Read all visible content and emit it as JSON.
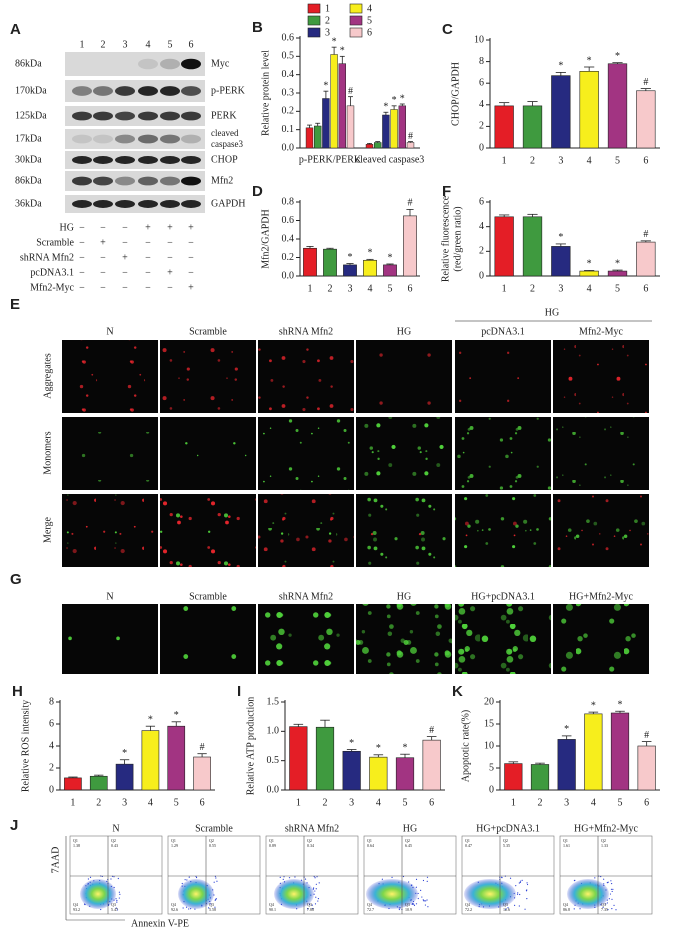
{
  "chart_data": [
    {
      "type": "grouped_bar",
      "label": "B",
      "ylabel": "Relative protein level",
      "categories": [
        "p-PERK/PERK",
        "cleaved caspase3"
      ],
      "series": [
        {
          "name": "1",
          "color": "#e41e26",
          "values": [
            0.11,
            0.02
          ],
          "errors": [
            0.015,
            0.005
          ],
          "significance": [
            null,
            null
          ]
        },
        {
          "name": "2",
          "color": "#3f9a3f",
          "values": [
            0.12,
            0.03
          ],
          "errors": [
            0.015,
            0.005
          ],
          "significance": [
            null,
            null
          ]
        },
        {
          "name": "3",
          "color": "#262a80",
          "values": [
            0.27,
            0.18
          ],
          "errors": [
            0.04,
            0.015
          ],
          "significance": [
            "*",
            "*"
          ]
        },
        {
          "name": "4",
          "color": "#f7ee1c",
          "values": [
            0.51,
            0.21
          ],
          "errors": [
            0.04,
            0.02
          ],
          "significance": [
            "*",
            "*"
          ]
        },
        {
          "name": "5",
          "color": "#a23482",
          "values": [
            0.46,
            0.23
          ],
          "errors": [
            0.04,
            0.01
          ],
          "significance": [
            "*",
            "*"
          ]
        },
        {
          "name": "6",
          "color": "#f7c9cb",
          "values": [
            0.23,
            0.03
          ],
          "errors": [
            0.05,
            0.005
          ],
          "significance": [
            "#",
            "#"
          ]
        }
      ],
      "ylim": [
        0,
        0.6
      ],
      "yticks": [
        {
          "value": 0,
          "label": "0.0"
        },
        0.1,
        0.2,
        0.3,
        0.4,
        0.5,
        0.6
      ]
    },
    {
      "type": "bar",
      "label": "C",
      "ylabel": "CHOP/GAPDH",
      "categories": [
        "1",
        "2",
        "3",
        "4",
        "5",
        "6"
      ],
      "values": [
        3.9,
        3.9,
        6.7,
        7.1,
        7.8,
        5.3
      ],
      "errors": [
        0.3,
        0.4,
        0.3,
        0.4,
        0.1,
        0.2
      ],
      "significance": [
        null,
        null,
        "*",
        "*",
        "*",
        "#"
      ],
      "colors": [
        "#e41e26",
        "#3f9a3f",
        "#262a80",
        "#f7ee1c",
        "#a23482",
        "#f7c9cb"
      ],
      "ylim": [
        0,
        10
      ],
      "yticks": [
        0,
        2,
        4,
        6,
        8,
        10
      ]
    },
    {
      "type": "bar",
      "label": "D",
      "ylabel": "Mfn2/GAPDH",
      "categories": [
        "1",
        "2",
        "3",
        "4",
        "5",
        "6"
      ],
      "values": [
        0.3,
        0.29,
        0.12,
        0.17,
        0.12,
        0.65
      ],
      "errors": [
        0.02,
        0.01,
        0.015,
        0.01,
        0.01,
        0.07
      ],
      "significance": [
        null,
        null,
        "*",
        "*",
        "*",
        "#"
      ],
      "colors": [
        "#e41e26",
        "#3f9a3f",
        "#262a80",
        "#f7ee1c",
        "#a23482",
        "#f7c9cb"
      ],
      "ylim": [
        0,
        0.8
      ],
      "yticks": [
        {
          "value": 0,
          "label": "0.0"
        },
        0.2,
        0.4,
        0.6,
        0.8
      ]
    },
    {
      "type": "bar",
      "label": "F",
      "ylabel": [
        "Relative fluorescence",
        "(red/green ratio)"
      ],
      "categories": [
        "1",
        "2",
        "3",
        "4",
        "5",
        "6"
      ],
      "values": [
        4.8,
        4.8,
        2.4,
        0.4,
        0.4,
        2.75
      ],
      "errors": [
        0.15,
        0.2,
        0.2,
        0.05,
        0.08,
        0.1
      ],
      "significance": [
        null,
        null,
        "*",
        "*",
        "*",
        "#"
      ],
      "colors": [
        "#e41e26",
        "#3f9a3f",
        "#262a80",
        "#f7ee1c",
        "#a23482",
        "#f7c9cb"
      ],
      "ylim": [
        0,
        6
      ],
      "yticks": [
        0,
        2,
        4,
        6
      ]
    },
    {
      "type": "bar",
      "label": "H",
      "ylabel": "Relative ROS intensity",
      "categories": [
        "1",
        "2",
        "3",
        "4",
        "5",
        "6"
      ],
      "values": [
        1.1,
        1.25,
        2.35,
        5.4,
        5.8,
        3.0
      ],
      "errors": [
        0.08,
        0.1,
        0.4,
        0.4,
        0.4,
        0.3
      ],
      "significance": [
        null,
        null,
        "*",
        "*",
        "*",
        "#"
      ],
      "colors": [
        "#e41e26",
        "#3f9a3f",
        "#262a80",
        "#f7ee1c",
        "#a23482",
        "#f7c9cb"
      ],
      "ylim": [
        0,
        8
      ],
      "yticks": [
        0,
        2,
        4,
        6,
        8
      ]
    },
    {
      "type": "bar",
      "label": "I",
      "ylabel": "Relative ATP production",
      "categories": [
        "1",
        "2",
        "3",
        "4",
        "5",
        "6"
      ],
      "values": [
        1.08,
        1.07,
        0.66,
        0.56,
        0.55,
        0.85
      ],
      "errors": [
        0.04,
        0.12,
        0.03,
        0.04,
        0.06,
        0.06
      ],
      "significance": [
        null,
        null,
        "*",
        "*",
        "*",
        "#"
      ],
      "colors": [
        "#e41e26",
        "#3f9a3f",
        "#262a80",
        "#f7ee1c",
        "#a23482",
        "#f7c9cb"
      ],
      "ylim": [
        0,
        1.5
      ],
      "yticks": [
        {
          "value": 0,
          "label": "0.0"
        },
        0.5,
        {
          "value": 1,
          "label": "1.0"
        },
        1.5
      ]
    },
    {
      "type": "bar",
      "label": "K",
      "ylabel": "Apoptotic rate(%)",
      "categories": [
        "1",
        "2",
        "3",
        "4",
        "5",
        "6"
      ],
      "values": [
        6.0,
        5.8,
        11.5,
        17.3,
        17.5,
        10.0
      ],
      "errors": [
        0.4,
        0.3,
        0.8,
        0.4,
        0.4,
        1.0
      ],
      "significance": [
        null,
        null,
        "*",
        "*",
        "*",
        "#"
      ],
      "colors": [
        "#e41e26",
        "#3f9a3f",
        "#262a80",
        "#f7ee1c",
        "#a23482",
        "#f7c9cb"
      ],
      "ylim": [
        0,
        20
      ],
      "yticks": [
        0,
        5,
        10,
        15,
        20
      ]
    }
  ],
  "blot": {
    "label": "A",
    "lanes": [
      "1",
      "2",
      "3",
      "4",
      "5",
      "6"
    ],
    "rows": [
      {
        "size": "86kDa",
        "name": "Myc"
      },
      {
        "size": "170kDa",
        "name": "p-PERK"
      },
      {
        "size": "125kDa",
        "name": "PERK"
      },
      {
        "size": "17kDa",
        "name": [
          "cleaved",
          "caspase3"
        ]
      },
      {
        "size": "30kDa",
        "name": "CHOP"
      },
      {
        "size": "86kDa",
        "name": "Mfn2"
      },
      {
        "size": "36kDa",
        "name": "GAPDH"
      }
    ],
    "treatments": [
      {
        "name": "HG",
        "signs": [
          "−",
          "−",
          "−",
          "+",
          "+",
          "+"
        ]
      },
      {
        "name": "Scramble",
        "signs": [
          "−",
          "+",
          "−",
          "−",
          "−",
          "−"
        ]
      },
      {
        "name": "shRNA Mfn2",
        "signs": [
          "−",
          "−",
          "+",
          "−",
          "−",
          "−"
        ]
      },
      {
        "name": "pcDNA3.1",
        "signs": [
          "−",
          "−",
          "−",
          "−",
          "+",
          "−"
        ]
      },
      {
        "name": "Mfn2-Myc",
        "signs": [
          "−",
          "−",
          "−",
          "−",
          "−",
          "+"
        ]
      }
    ]
  },
  "micrographs": {
    "label": "E",
    "group": "HG",
    "columns": [
      "N",
      "Scramble",
      "shRNA Mfn2",
      "HG",
      "pcDNA3.1",
      "Mfn2-Myc"
    ],
    "rows": [
      "Aggregates",
      "Monomers",
      "Merge"
    ]
  },
  "ros_images": {
    "label": "G",
    "columns": [
      "N",
      "Scramble",
      "shRNA Mfn2",
      "HG",
      "HG+pcDNA3.1",
      "HG+Mfn2-Myc"
    ]
  },
  "flow": {
    "label": "J",
    "ylabel": "7AAD",
    "xlabel": "Annexin V-PE",
    "columns": [
      "N",
      "Scramble",
      "shRNA Mfn2",
      "HG",
      "HG+pcDNA3.1",
      "HG+Mfn2-Myc"
    ],
    "quadrants": [
      [
        [
          "Q1",
          "1.38"
        ],
        [
          "Q2",
          "0.43"
        ],
        [
          "Q4",
          "93.2"
        ],
        [
          "Q3",
          "5.47"
        ]
      ],
      [
        [
          "Q1",
          "1.29"
        ],
        [
          "Q2",
          "0.55"
        ],
        [
          "Q4",
          "92.6"
        ],
        [
          "Q3",
          "5.58"
        ]
      ],
      [
        [
          "Q1",
          "0.89"
        ],
        [
          "Q2",
          "0.34"
        ],
        [
          "Q4",
          "90.1"
        ],
        [
          "Q3",
          "7.88"
        ]
      ],
      [
        [
          "Q1",
          "0.64"
        ],
        [
          "Q2",
          "6.45"
        ],
        [
          "Q4",
          "72.7"
        ],
        [
          "Q3",
          "10.9"
        ]
      ],
      [
        [
          "Q1",
          "0.47"
        ],
        [
          "Q2",
          "5.35"
        ],
        [
          "Q4",
          "72.2"
        ],
        [
          "Q3",
          "12.6"
        ]
      ],
      [
        [
          "Q1",
          "1.61"
        ],
        [
          "Q2",
          "1.33"
        ],
        [
          "Q4",
          "86.8"
        ],
        [
          "Q3",
          "7.35"
        ]
      ]
    ]
  }
}
